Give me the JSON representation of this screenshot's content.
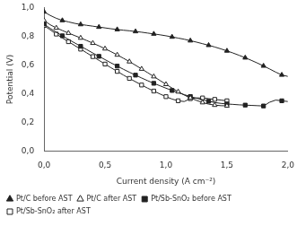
{
  "chart_data": {
    "type": "line",
    "xlabel": "Current density (A cm⁻²)",
    "ylabel": "Potential (V)",
    "xlim": [
      0,
      2.0
    ],
    "ylim": [
      0,
      1.0
    ],
    "xticks": [
      {
        "value": 0.0,
        "label": "0,0"
      },
      {
        "value": 0.5,
        "label": "0,5"
      },
      {
        "value": 1.0,
        "label": "1,0"
      },
      {
        "value": 1.5,
        "label": "1,5"
      },
      {
        "value": 2.0,
        "label": "2,0"
      }
    ],
    "yticks": [
      {
        "value": 0.0,
        "label": "0,0"
      },
      {
        "value": 0.2,
        "label": "0,2"
      },
      {
        "value": 0.4,
        "label": "0,4"
      },
      {
        "value": 0.6,
        "label": "0,6"
      },
      {
        "value": 0.8,
        "label": "0,8"
      },
      {
        "value": 1.0,
        "label": "1,0"
      }
    ],
    "grid": false,
    "legend": "lower left",
    "series": [
      {
        "name": "Pt/C before AST",
        "color": "#222222",
        "marker": "triangle",
        "x": [
          0.0,
          0.05,
          0.1,
          0.15,
          0.2,
          0.25,
          0.3,
          0.35,
          0.4,
          0.45,
          0.5,
          0.55,
          0.6,
          0.65,
          0.7,
          0.75,
          0.8,
          0.85,
          0.9,
          0.95,
          1.0,
          1.05,
          1.1,
          1.15,
          1.2,
          1.25,
          1.3,
          1.35,
          1.4,
          1.45,
          1.5,
          1.55,
          1.6,
          1.65,
          1.7,
          1.75,
          1.8,
          1.85,
          1.9,
          1.95,
          2.0
        ],
        "values": [
          0.97,
          0.945,
          0.925,
          0.91,
          0.9,
          0.89,
          0.882,
          0.876,
          0.87,
          0.864,
          0.858,
          0.852,
          0.847,
          0.842,
          0.838,
          0.833,
          0.828,
          0.822,
          0.816,
          0.81,
          0.803,
          0.795,
          0.787,
          0.779,
          0.769,
          0.759,
          0.748,
          0.737,
          0.725,
          0.712,
          0.698,
          0.683,
          0.667,
          0.65,
          0.632,
          0.613,
          0.593,
          0.572,
          0.55,
          0.53,
          0.52
        ]
      },
      {
        "name": "Pt/C after AST",
        "color": "#222222",
        "marker": "triangle-open",
        "x": [
          0.0,
          0.05,
          0.1,
          0.15,
          0.2,
          0.25,
          0.3,
          0.35,
          0.4,
          0.45,
          0.5,
          0.55,
          0.6,
          0.65,
          0.7,
          0.75,
          0.8,
          0.85,
          0.9,
          0.95,
          1.0,
          1.05,
          1.1,
          1.15,
          1.2,
          1.25,
          1.3,
          1.35,
          1.4,
          1.45,
          1.5
        ],
        "values": [
          0.91,
          0.88,
          0.858,
          0.84,
          0.822,
          0.805,
          0.788,
          0.77,
          0.752,
          0.733,
          0.713,
          0.692,
          0.67,
          0.647,
          0.623,
          0.598,
          0.572,
          0.546,
          0.519,
          0.492,
          0.465,
          0.439,
          0.413,
          0.39,
          0.37,
          0.353,
          0.338,
          0.327,
          0.32,
          0.316,
          0.315
        ]
      },
      {
        "name": "Pt/Sb-SnO₂ before AST",
        "color": "#222222",
        "marker": "square",
        "x": [
          0.0,
          0.05,
          0.1,
          0.15,
          0.2,
          0.25,
          0.3,
          0.35,
          0.4,
          0.45,
          0.5,
          0.55,
          0.6,
          0.65,
          0.7,
          0.75,
          0.8,
          0.85,
          0.9,
          0.95,
          1.0,
          1.05,
          1.1,
          1.15,
          1.2,
          1.25,
          1.3,
          1.35,
          1.4,
          1.45,
          1.5,
          1.55,
          1.6,
          1.65,
          1.7,
          1.75,
          1.8,
          1.85,
          1.9,
          1.95,
          2.0
        ],
        "values": [
          0.885,
          0.855,
          0.828,
          0.803,
          0.778,
          0.754,
          0.73,
          0.707,
          0.683,
          0.66,
          0.637,
          0.614,
          0.592,
          0.57,
          0.549,
          0.529,
          0.509,
          0.49,
          0.472,
          0.455,
          0.438,
          0.422,
          0.407,
          0.393,
          0.38,
          0.368,
          0.357,
          0.347,
          0.338,
          0.332,
          0.328,
          0.325,
          0.322,
          0.32,
          0.318,
          0.316,
          0.314,
          0.34,
          0.355,
          0.35,
          0.345
        ]
      },
      {
        "name": "Pt/Sb-SnO₂ after AST",
        "color": "#222222",
        "marker": "square-open",
        "x": [
          0.0,
          0.05,
          0.1,
          0.15,
          0.2,
          0.25,
          0.3,
          0.35,
          0.4,
          0.45,
          0.5,
          0.55,
          0.6,
          0.65,
          0.7,
          0.75,
          0.8,
          0.85,
          0.9,
          0.95,
          1.0,
          1.05,
          1.1,
          1.15,
          1.2,
          1.25,
          1.3,
          1.35,
          1.4,
          1.45,
          1.5
        ],
        "values": [
          0.875,
          0.845,
          0.815,
          0.788,
          0.762,
          0.736,
          0.71,
          0.684,
          0.658,
          0.632,
          0.606,
          0.58,
          0.555,
          0.53,
          0.506,
          0.483,
          0.46,
          0.438,
          0.418,
          0.398,
          0.379,
          0.362,
          0.35,
          0.345,
          0.365,
          0.37,
          0.37,
          0.365,
          0.36,
          0.355,
          0.35
        ]
      }
    ]
  }
}
